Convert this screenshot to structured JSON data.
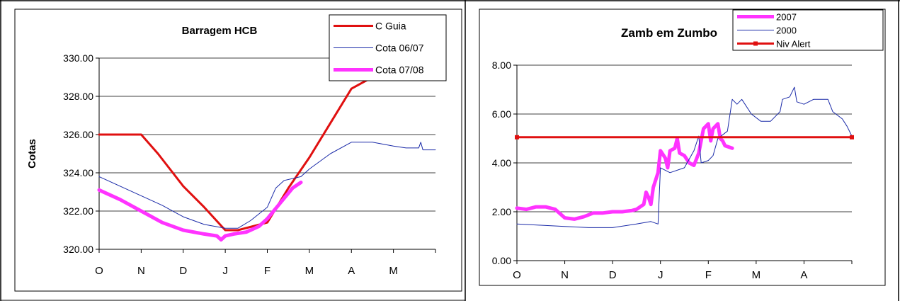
{
  "chart_data": [
    {
      "type": "line",
      "title": "Barragem HCB",
      "ylabel": "Cotas",
      "xlabel": "",
      "categories": [
        "O",
        "N",
        "D",
        "J",
        "F",
        "M",
        "A",
        "M"
      ],
      "x_range": [
        0,
        8
      ],
      "ylim": [
        320,
        330
      ],
      "yticks": [
        320,
        322,
        324,
        326,
        328,
        330
      ],
      "ytick_labels": [
        "320.00",
        "322.00",
        "324.00",
        "326.00",
        "328.00",
        "330.00"
      ],
      "grid": "horizontal",
      "legend_position": "top-right",
      "series": [
        {
          "name": "C Guia",
          "color": "#e01010",
          "width": 3,
          "points": [
            [
              0,
              326
            ],
            [
              1,
              326
            ],
            [
              1.4,
              325
            ],
            [
              2,
              323.3
            ],
            [
              2.5,
              322.2
            ],
            [
              3,
              321
            ],
            [
              3.3,
              321
            ],
            [
              4,
              321.4
            ],
            [
              4.5,
              323.2
            ],
            [
              5,
              324.8
            ],
            [
              5.5,
              326.6
            ],
            [
              6,
              328.4
            ],
            [
              6.5,
              329
            ],
            [
              8,
              329
            ]
          ]
        },
        {
          "name": "Cota 06/07",
          "color": "#1a2aa8",
          "width": 1,
          "points": [
            [
              0,
              323.8
            ],
            [
              0.5,
              323.3
            ],
            [
              1,
              322.8
            ],
            [
              1.5,
              322.3
            ],
            [
              2,
              321.7
            ],
            [
              2.5,
              321.3
            ],
            [
              3,
              321.1
            ],
            [
              3.3,
              321.1
            ],
            [
              3.6,
              321.5
            ],
            [
              4,
              322.2
            ],
            [
              4.2,
              323.2
            ],
            [
              4.4,
              323.6
            ],
            [
              4.8,
              323.8
            ],
            [
              5,
              324.2
            ],
            [
              5.5,
              325
            ],
            [
              6,
              325.6
            ],
            [
              6.5,
              325.6
            ],
            [
              7,
              325.4
            ],
            [
              7.3,
              325.3
            ],
            [
              7.6,
              325.3
            ],
            [
              7.65,
              325.6
            ],
            [
              7.7,
              325.2
            ],
            [
              8,
              325.2
            ]
          ]
        },
        {
          "name": "Cota 07/08",
          "color": "#ff33ff",
          "width": 5,
          "points": [
            [
              0,
              323.1
            ],
            [
              0.5,
              322.6
            ],
            [
              1,
              322
            ],
            [
              1.5,
              321.4
            ],
            [
              2,
              321
            ],
            [
              2.5,
              320.8
            ],
            [
              2.8,
              320.7
            ],
            [
              2.9,
              320.5
            ],
            [
              3,
              320.7
            ],
            [
              3.2,
              320.8
            ],
            [
              3.5,
              320.9
            ],
            [
              3.8,
              321.2
            ],
            [
              4,
              321.6
            ],
            [
              4.3,
              322.4
            ],
            [
              4.6,
              323.2
            ],
            [
              4.8,
              323.5
            ]
          ]
        }
      ]
    },
    {
      "type": "line",
      "title": "Zamb em Zumbo",
      "ylabel": "",
      "xlabel": "",
      "categories": [
        "O",
        "N",
        "D",
        "J",
        "F",
        "M",
        "A"
      ],
      "x_range": [
        0,
        7
      ],
      "ylim": [
        0,
        8
      ],
      "yticks": [
        0,
        2,
        4,
        6,
        8
      ],
      "ytick_labels": [
        "0.00",
        "2.00",
        "4.00",
        "6.00",
        "8.00"
      ],
      "grid": "horizontal",
      "legend_position": "top-right",
      "series": [
        {
          "name": "2007",
          "color": "#ff33ff",
          "width": 5,
          "points": [
            [
              0,
              2.15
            ],
            [
              0.2,
              2.1
            ],
            [
              0.4,
              2.2
            ],
            [
              0.6,
              2.2
            ],
            [
              0.8,
              2.1
            ],
            [
              1,
              1.75
            ],
            [
              1.2,
              1.7
            ],
            [
              1.4,
              1.8
            ],
            [
              1.6,
              1.95
            ],
            [
              1.8,
              1.95
            ],
            [
              2,
              2
            ],
            [
              2.2,
              2
            ],
            [
              2.4,
              2.05
            ],
            [
              2.5,
              2.1
            ],
            [
              2.65,
              2.3
            ],
            [
              2.7,
              2.8
            ],
            [
              2.75,
              2.6
            ],
            [
              2.8,
              2.3
            ],
            [
              2.85,
              3
            ],
            [
              2.95,
              3.6
            ],
            [
              3,
              4.5
            ],
            [
              3.1,
              4.2
            ],
            [
              3.15,
              3.8
            ],
            [
              3.2,
              4.5
            ],
            [
              3.3,
              4.6
            ],
            [
              3.35,
              5
            ],
            [
              3.4,
              4.4
            ],
            [
              3.5,
              4.3
            ],
            [
              3.6,
              4
            ],
            [
              3.7,
              3.9
            ],
            [
              3.8,
              4.4
            ],
            [
              3.9,
              5.4
            ],
            [
              4,
              5.6
            ],
            [
              4.05,
              4.9
            ],
            [
              4.1,
              5.4
            ],
            [
              4.2,
              5.6
            ],
            [
              4.25,
              5
            ],
            [
              4.3,
              4.9
            ],
            [
              4.35,
              4.7
            ],
            [
              4.5,
              4.6
            ]
          ]
        },
        {
          "name": "2000",
          "color": "#1a2aa8",
          "width": 1,
          "points": [
            [
              0,
              1.5
            ],
            [
              0.5,
              1.45
            ],
            [
              1,
              1.4
            ],
            [
              1.5,
              1.35
            ],
            [
              2,
              1.35
            ],
            [
              2.5,
              1.5
            ],
            [
              2.8,
              1.6
            ],
            [
              2.95,
              1.5
            ],
            [
              3,
              3.8
            ],
            [
              3.2,
              3.6
            ],
            [
              3.5,
              3.8
            ],
            [
              3.7,
              4.5
            ],
            [
              3.8,
              5.1
            ],
            [
              3.85,
              4
            ],
            [
              4,
              4.1
            ],
            [
              4.1,
              4.3
            ],
            [
              4.2,
              5
            ],
            [
              4.4,
              5.3
            ],
            [
              4.5,
              6.6
            ],
            [
              4.6,
              6.4
            ],
            [
              4.7,
              6.6
            ],
            [
              4.9,
              6
            ],
            [
              5.1,
              5.7
            ],
            [
              5.3,
              5.7
            ],
            [
              5.5,
              6.1
            ],
            [
              5.55,
              6.6
            ],
            [
              5.7,
              6.7
            ],
            [
              5.8,
              7.1
            ],
            [
              5.85,
              6.5
            ],
            [
              6,
              6.4
            ],
            [
              6.2,
              6.6
            ],
            [
              6.5,
              6.6
            ],
            [
              6.6,
              6.1
            ],
            [
              6.8,
              5.8
            ],
            [
              6.9,
              5.5
            ],
            [
              7,
              5.1
            ]
          ]
        },
        {
          "name": "Niv Alert",
          "color": "#e01010",
          "width": 3,
          "points": [
            [
              0,
              5.05
            ],
            [
              7,
              5.05
            ]
          ]
        }
      ]
    }
  ]
}
